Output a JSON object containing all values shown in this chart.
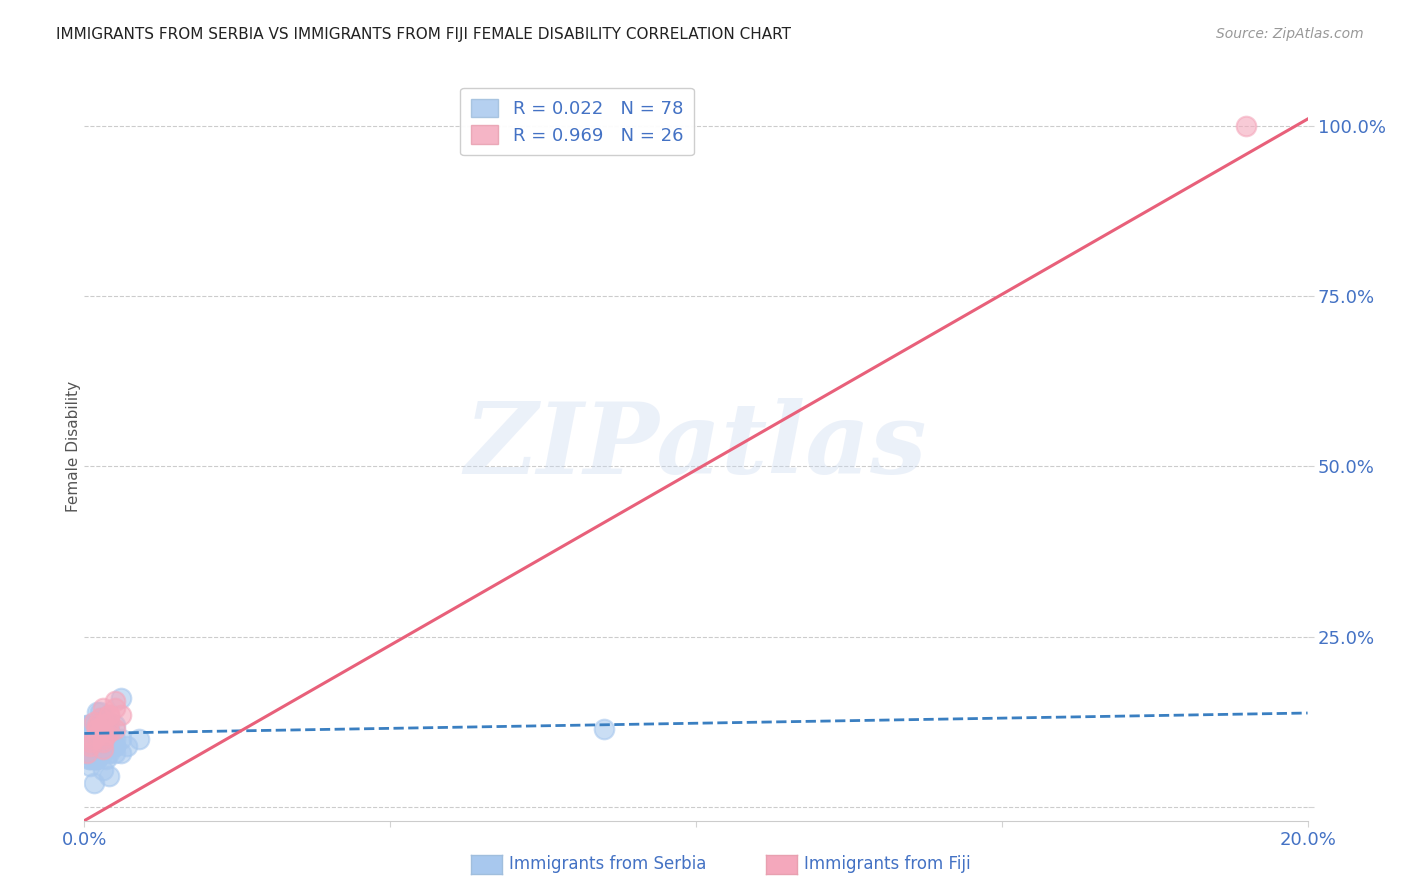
{
  "title": "IMMIGRANTS FROM SERBIA VS IMMIGRANTS FROM FIJI FEMALE DISABILITY CORRELATION CHART",
  "source": "Source: ZipAtlas.com",
  "ylabel": "Female Disability",
  "xlim": [
    0.0,
    0.2
  ],
  "ylim": [
    -0.02,
    1.08
  ],
  "x_ticks": [
    0.0,
    0.05,
    0.1,
    0.15,
    0.2
  ],
  "y_ticks": [
    0.0,
    0.25,
    0.5,
    0.75,
    1.0
  ],
  "serbia_color": "#A8C8EE",
  "fiji_color": "#F4A8BC",
  "serbia_label": "Immigrants from Serbia",
  "fiji_label": "Immigrants from Fiji",
  "legend_R_serbia": "R = 0.022",
  "legend_N_serbia": "N = 78",
  "legend_R_fiji": "R = 0.969",
  "legend_N_fiji": "N = 26",
  "trendline_serbia_color": "#3A7FC1",
  "trendline_fiji_color": "#E8607A",
  "serbia_trendline_slope": 0.15,
  "serbia_trendline_intercept": 0.108,
  "fiji_trendline_slope": 5.15,
  "fiji_trendline_intercept": -0.02,
  "watermark_text": "ZIPatlas",
  "serbia_x": [
    0.0005,
    0.001,
    0.0008,
    0.0015,
    0.002,
    0.001,
    0.003,
    0.0025,
    0.002,
    0.001,
    0.0005,
    0.0015,
    0.002,
    0.003,
    0.0025,
    0.001,
    0.002,
    0.0015,
    0.003,
    0.0035,
    0.004,
    0.003,
    0.002,
    0.004,
    0.003,
    0.002,
    0.001,
    0.0035,
    0.003,
    0.005,
    0.004,
    0.003,
    0.002,
    0.001,
    0.0025,
    0.0015,
    0.003,
    0.004,
    0.002,
    0.005,
    0.004,
    0.003,
    0.002,
    0.001,
    0.0015,
    0.002,
    0.003,
    0.004,
    0.005,
    0.003,
    0.006,
    0.005,
    0.004,
    0.003,
    0.002,
    0.001,
    0.0015,
    0.0005,
    0.003,
    0.004,
    0.007,
    0.006,
    0.005,
    0.004,
    0.003,
    0.002,
    0.001,
    0.0015,
    0.0005,
    0.002,
    0.085,
    0.002,
    0.0015,
    0.003,
    0.0025,
    0.009,
    0.004,
    0.006
  ],
  "serbia_y": [
    0.1,
    0.08,
    0.07,
    0.09,
    0.11,
    0.06,
    0.1,
    0.13,
    0.08,
    0.09,
    0.12,
    0.1,
    0.09,
    0.12,
    0.1,
    0.08,
    0.09,
    0.11,
    0.13,
    0.07,
    0.1,
    0.09,
    0.08,
    0.11,
    0.09,
    0.07,
    0.12,
    0.1,
    0.08,
    0.09,
    0.11,
    0.1,
    0.09,
    0.08,
    0.12,
    0.07,
    0.1,
    0.11,
    0.09,
    0.08,
    0.12,
    0.1,
    0.09,
    0.07,
    0.11,
    0.08,
    0.1,
    0.09,
    0.12,
    0.11,
    0.1,
    0.09,
    0.08,
    0.11,
    0.1,
    0.09,
    0.07,
    0.12,
    0.1,
    0.11,
    0.09,
    0.08,
    0.1,
    0.11,
    0.09,
    0.07,
    0.12,
    0.1,
    0.08,
    0.11,
    0.115,
    0.14,
    0.035,
    0.055,
    0.14,
    0.1,
    0.045,
    0.16
  ],
  "fiji_x": [
    0.0005,
    0.001,
    0.0015,
    0.002,
    0.0025,
    0.003,
    0.0035,
    0.004,
    0.005,
    0.006,
    0.0025,
    0.003,
    0.004,
    0.005,
    0.003,
    0.002,
    0.001,
    0.0015,
    0.004,
    0.003,
    0.002,
    0.003,
    0.004,
    0.005,
    0.002,
    0.19
  ],
  "fiji_y": [
    0.08,
    0.09,
    0.1,
    0.115,
    0.13,
    0.145,
    0.105,
    0.125,
    0.155,
    0.135,
    0.11,
    0.12,
    0.135,
    0.115,
    0.1,
    0.115,
    0.095,
    0.125,
    0.11,
    0.085,
    0.105,
    0.095,
    0.135,
    0.145,
    0.12,
    1.0
  ]
}
